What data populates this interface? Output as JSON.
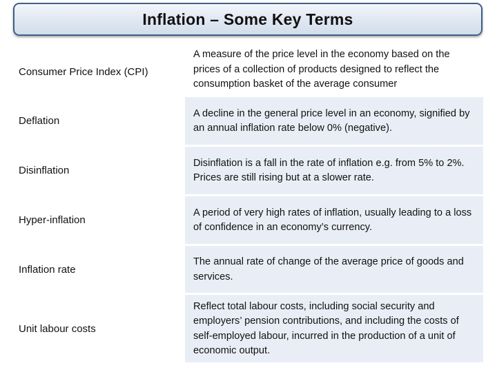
{
  "title": "Inflation – Some Key Terms",
  "terms": [
    {
      "term": "Consumer Price Index (CPI)",
      "definition": "A measure of the price level in the economy based on the prices of a collection of products designed to reflect the consumption basket of the average consumer"
    },
    {
      "term": "Deflation",
      "definition": "A decline in the general price level in an economy, signified by an annual inflation rate below 0% (negative)."
    },
    {
      "term": "Disinflation",
      "definition": "Disinflation is a fall in the rate of inflation e.g. from 5% to 2%. Prices are still rising but at a slower rate."
    },
    {
      "term": "Hyper-inflation",
      "definition": "A period of very high rates of inflation, usually leading to a loss of confidence in an economy’s currency."
    },
    {
      "term": "Inflation rate",
      "definition": "The annual rate of change of the average price of goods and services."
    },
    {
      "term": "Unit labour costs",
      "definition": "Reflect total labour costs, including social security and employers’ pension contributions, and including the costs of self-employed labour, incurred in the production of a unit of economic output."
    }
  ]
}
